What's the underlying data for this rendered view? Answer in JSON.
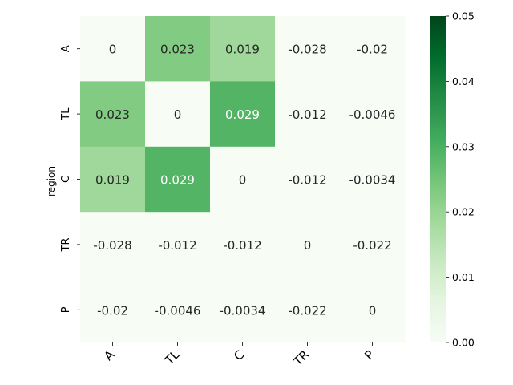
{
  "chart_data": {
    "type": "heatmap",
    "title": "",
    "xlabel": "",
    "ylabel": "region",
    "x_categories": [
      "A",
      "TL",
      "C",
      "TR",
      "P"
    ],
    "y_categories": [
      "A",
      "TL",
      "C",
      "TR",
      "P"
    ],
    "values": [
      [
        0,
        0.023,
        0.019,
        -0.028,
        -0.02
      ],
      [
        0.023,
        0,
        0.029,
        -0.012,
        -0.0046
      ],
      [
        0.019,
        0.029,
        0,
        -0.012,
        -0.0034
      ],
      [
        -0.028,
        -0.012,
        -0.012,
        0,
        -0.022
      ],
      [
        -0.02,
        -0.0046,
        -0.0034,
        -0.022,
        0
      ]
    ],
    "labels": [
      [
        "0",
        "0.023",
        "0.019",
        "-0.028",
        "-0.02"
      ],
      [
        "0.023",
        "0",
        "0.029",
        "-0.012",
        "-0.0046"
      ],
      [
        "0.019",
        "0.029",
        "0",
        "-0.012",
        "-0.0034"
      ],
      [
        "-0.028",
        "-0.012",
        "-0.012",
        "0",
        "-0.022"
      ],
      [
        "-0.02",
        "-0.0046",
        "-0.0034",
        "-0.022",
        "0"
      ]
    ],
    "color_range": [
      0,
      0.05
    ],
    "colormap": "Greens",
    "colorbar_ticks": [
      {
        "value": 0,
        "label": "0.00"
      },
      {
        "value": 0.01,
        "label": "0.01"
      },
      {
        "value": 0.02,
        "label": "0.02"
      },
      {
        "value": 0.03,
        "label": "0.03"
      },
      {
        "value": 0.04,
        "label": "0.04"
      },
      {
        "value": 0.05,
        "label": "0.05"
      }
    ],
    "grid": false
  }
}
